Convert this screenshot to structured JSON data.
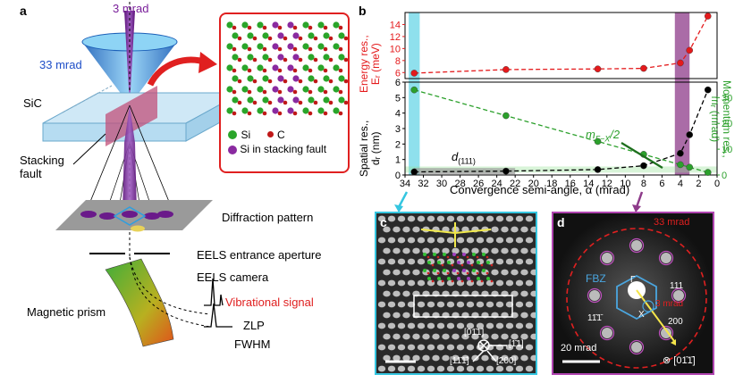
{
  "panels": {
    "a": {
      "letter": "a",
      "inner_angle": "3 mrad",
      "outer_angle": "33 mrad",
      "sample": "SiC",
      "stacking_fault": "Stacking\nfault",
      "diffraction_pattern": "Diffraction pattern",
      "eels_aperture": "EELS entrance aperture",
      "eels_camera": "EELS camera",
      "magnetic_prism": "Magnetic prism",
      "vibrational_signal": "Vibrational signal",
      "zlp": "ZLP",
      "fwhm": "FWHM",
      "legend": {
        "si": "Si",
        "c": "C",
        "si_fault": "Si in stacking fault"
      }
    },
    "b": {
      "letter": "b",
      "xlabel": "Convergence semi-angle, α (mrad)",
      "top_ylabel_line1": "Energy res.,",
      "top_ylabel_line2": "Eᵣ (meV)",
      "bottom_left_ylabel_line1": "Spatial res.,",
      "bottom_left_ylabel_line2": "dᵣ (nm)",
      "bottom_right_ylabel_line1": "Momentum res.,",
      "bottom_right_ylabel_line2": "mᵣ (mrad)",
      "annot_m": "m",
      "annot_m_sub": "Γ−X",
      "annot_m_tail": "/2",
      "annot_d": "d",
      "annot_d_sub": "(111)"
    },
    "c": {
      "letter": "c",
      "dir_01": "[01̄1̄]",
      "dir_11": "[1̄1]",
      "dir_111": "[11̄1̄]",
      "dir_200": "[200]"
    },
    "d": {
      "letter": "d",
      "ring_label": "33 mrad",
      "fbz": "FBZ",
      "gamma": "Γ",
      "x_point": "X",
      "spot_111": "111",
      "spot_1bar": "11̄1̄",
      "spot_200": "200",
      "beam_label": "3 mrad",
      "scale": "20 mrad",
      "zone": "⊗ [01̄1̄]"
    }
  },
  "colors": {
    "energy": "#e41a1c",
    "spatial": "#000000",
    "momentum": "#2ca02c",
    "cyan_band": "#5fd3e6",
    "purple_band": "#8e3b8a",
    "cone_blue": "#2a7fdc",
    "beam_purple": "#6a1a8a",
    "sample_blue": "#b9dff3",
    "red_frame": "#e02020",
    "cyan_frame": "#35c6e0",
    "purple_frame": "#b044b0"
  },
  "chart_data": [
    {
      "type": "line",
      "title": "",
      "xlabel": "Convergence semi-angle, α (mrad)",
      "ylabel": "Energy res., Eᵣ (meV)",
      "xlim": [
        34,
        0
      ],
      "ylim": [
        5,
        16
      ],
      "xticks": [
        34,
        32,
        30,
        28,
        26,
        24,
        22,
        20,
        18,
        16,
        14,
        12,
        10,
        8,
        6,
        4,
        2,
        0
      ],
      "yticks": [
        6,
        8,
        10,
        12,
        14
      ],
      "series": [
        {
          "color": "#e41a1c",
          "x": [
            33,
            23,
            13,
            8,
            4,
            3,
            1
          ],
          "y": [
            5.9,
            6.5,
            6.6,
            6.7,
            7.6,
            9.7,
            15.4
          ]
        }
      ]
    },
    {
      "type": "line",
      "title": "",
      "xlabel": "Convergence semi-angle, α (mrad)",
      "ylabel": "Spatial res., dᵣ (nm)",
      "y2label": "Momentum res., mᵣ (mrad)",
      "xlim": [
        34,
        0
      ],
      "ylim": [
        0,
        6
      ],
      "y2lim": [
        0,
        36
      ],
      "yticks": [
        0,
        1,
        2,
        3,
        4,
        5,
        6
      ],
      "y2ticks": [
        0,
        10,
        20,
        30
      ],
      "series": [
        {
          "axis": "left",
          "color": "#000000",
          "x": [
            33,
            23,
            13,
            8,
            4,
            3,
            1
          ],
          "y": [
            0.2,
            0.25,
            0.35,
            0.6,
            1.4,
            2.6,
            5.5
          ]
        },
        {
          "axis": "right",
          "color": "#2ca02c",
          "x": [
            33,
            23,
            13,
            8,
            4,
            3,
            1
          ],
          "y": [
            33,
            23,
            13,
            8,
            4,
            3,
            1
          ]
        }
      ]
    }
  ]
}
